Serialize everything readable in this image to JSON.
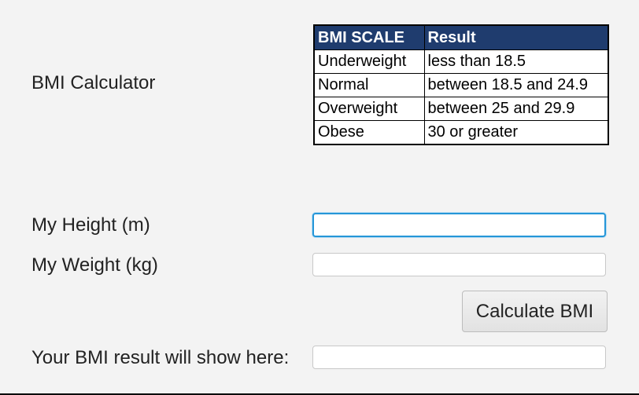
{
  "app": {
    "title_label": "BMI Calculator"
  },
  "scale_table": {
    "headers": [
      "BMI SCALE",
      "Result"
    ],
    "rows": [
      [
        "Underweight",
        "less than 18.5"
      ],
      [
        "Normal",
        "between 18.5 and 24.9"
      ],
      [
        "Overweight",
        "between 25 and 29.9"
      ],
      [
        "Obese",
        "30 or greater"
      ]
    ],
    "header_color": "#1f3c6e"
  },
  "form": {
    "height_label": "My Height (m)",
    "height_value": "",
    "weight_label": "My Weight (kg)",
    "weight_value": "",
    "calculate_label": "Calculate BMI",
    "result_label": "Your BMI result will show here:",
    "result_value": ""
  },
  "colors": {
    "background": "#f3f3f3",
    "focus_border": "#2596d8"
  }
}
